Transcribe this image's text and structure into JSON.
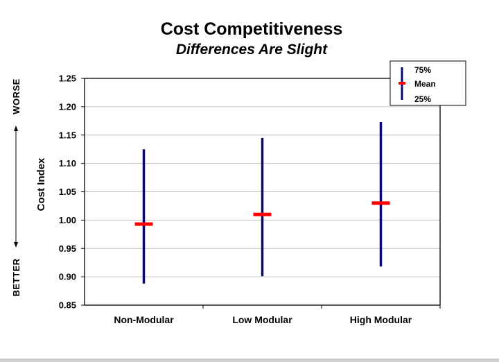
{
  "chart_data": {
    "type": "range",
    "title": "Cost Competitiveness",
    "subtitle": "Differences Are Slight",
    "ylabel": "Cost Index",
    "ylim": [
      0.85,
      1.25
    ],
    "ytick_step": 0.05,
    "yticks": [
      "0.85",
      "0.90",
      "0.95",
      "1.00",
      "1.05",
      "1.10",
      "1.15",
      "1.20",
      "1.25"
    ],
    "grid": true,
    "legend_position": "top-right",
    "legend": {
      "high": "75%",
      "mean": "Mean",
      "low": "25%"
    },
    "side_labels": {
      "top": "WORSE",
      "bottom": "BETTER"
    },
    "categories": [
      "Non-Modular",
      "Low Modular",
      "High Modular"
    ],
    "p75": [
      1.125,
      1.145,
      1.173
    ],
    "mean": [
      0.993,
      1.01,
      1.03
    ],
    "p25": [
      0.888,
      0.901,
      0.918
    ],
    "colors": {
      "range_line": "#0a0a6e",
      "mean_marker": "#ff0000",
      "grid": "#c0c0c0",
      "axis": "#000000"
    }
  }
}
